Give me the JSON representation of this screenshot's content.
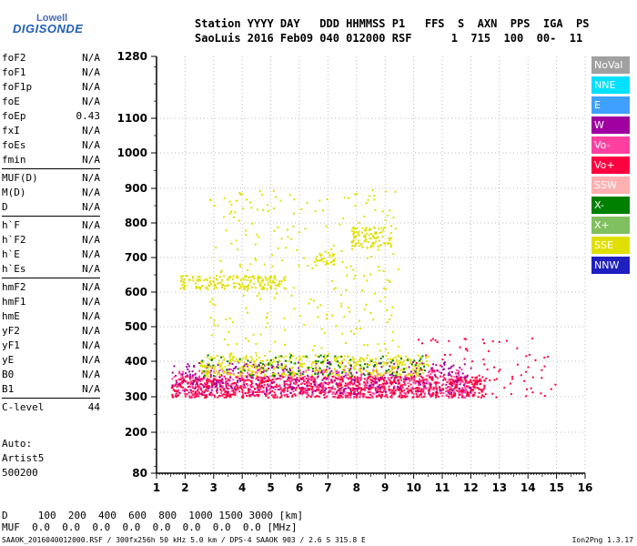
{
  "branding": {
    "line1": "Lowell",
    "line2": "DIGISONDE"
  },
  "header": {
    "labels": "Station YYYY DAY   DDD HHMMSS P1   FFS  S  AXN  PPS  IGA  PS",
    "values": "SaoLuis 2016 Feb09 040 012000 RSF      1  715  100  00-  11"
  },
  "params_groups": [
    [
      [
        "foF2",
        "N/A"
      ],
      [
        "foF1",
        "N/A"
      ],
      [
        "foF1p",
        "N/A"
      ],
      [
        "foE",
        "N/A"
      ],
      [
        "foEp",
        "0.43"
      ],
      [
        "fxI",
        "N/A"
      ],
      [
        "foEs",
        "N/A"
      ],
      [
        "fmin",
        "N/A"
      ]
    ],
    [
      [
        "MUF(D)",
        "N/A"
      ],
      [
        "M(D)",
        "N/A"
      ],
      [
        "D",
        "N/A"
      ]
    ],
    [
      [
        "h`F",
        "N/A"
      ],
      [
        "h`F2",
        "N/A"
      ],
      [
        "h`E",
        "N/A"
      ],
      [
        "h`Es",
        "N/A"
      ]
    ],
    [
      [
        "hmF2",
        "N/A"
      ],
      [
        "hmF1",
        "N/A"
      ],
      [
        "hmE",
        "N/A"
      ],
      [
        "yF2",
        "N/A"
      ],
      [
        "yF1",
        "N/A"
      ],
      [
        "yE",
        "N/A"
      ],
      [
        "B0",
        "N/A"
      ],
      [
        "B1",
        "N/A"
      ]
    ],
    [
      [
        "C-level",
        "44"
      ]
    ]
  ],
  "auto": {
    "line1": "Auto:",
    "line2": "Artist5",
    "line3": "500200"
  },
  "muf_table": {
    "d_label": "D",
    "d_values": "  100  200  400  600  800  1000 1500 3000 [km]",
    "muf_label": "MUF",
    "muf_values": " 0.0  0.0  0.0  0.0  0.0  0.0  0.0  0.0 [MHz]"
  },
  "footer": {
    "left": "SAAOK_2016040012000.RSF / 300fx256h 50 kHz 5.0 km / DPS-4 SAAOK 903 / 2.6 S 315.8 E",
    "right": "Ion2Png 1.3.17"
  },
  "legend": [
    {
      "label": "NoVal",
      "color": "#a0a0a0"
    },
    {
      "label": "NNE",
      "color": "#00e0ff"
    },
    {
      "label": "E",
      "color": "#40a0ff"
    },
    {
      "label": "W",
      "color": "#a000a0"
    },
    {
      "label": "Vo-",
      "color": "#ff40a0"
    },
    {
      "label": "Vo+",
      "color": "#ff0040"
    },
    {
      "label": "SSW",
      "color": "#ffb0b0"
    },
    {
      "label": "X-",
      "color": "#008000"
    },
    {
      "label": "X+",
      "color": "#80c060"
    },
    {
      "label": "SSE",
      "color": "#e0e000"
    },
    {
      "label": "NNW",
      "color": "#2020c0"
    }
  ],
  "chart_data": {
    "type": "scatter",
    "title": "",
    "xlabel": "",
    "ylabel": "",
    "xlim": [
      1,
      16
    ],
    "ylim": [
      80,
      1280
    ],
    "x_ticks": [
      1,
      2,
      3,
      4,
      5,
      6,
      7,
      8,
      9,
      10,
      11,
      12,
      13,
      14,
      15,
      16
    ],
    "y_ticks": [
      80,
      200,
      300,
      400,
      500,
      600,
      700,
      800,
      900,
      1000,
      1100,
      1280
    ],
    "y_scale": "nonlinear (ionogram height scale)",
    "grid": true,
    "echo_regions": [
      {
        "name": "lower trace (Vo+)",
        "x": [
          1.5,
          12.5
        ],
        "y": [
          300,
          360
        ],
        "color": "#ff0040",
        "density": 0.85
      },
      {
        "name": "lower trace (Vo-)",
        "x": [
          1.5,
          12.0
        ],
        "y": [
          300,
          380
        ],
        "color": "#ff40a0",
        "density": 0.25
      },
      {
        "name": "lower trace (W)",
        "x": [
          1.5,
          12.0
        ],
        "y": [
          310,
          400
        ],
        "color": "#a000a0",
        "density": 0.2
      },
      {
        "name": "SSE band",
        "x": [
          2.5,
          10.5
        ],
        "y": [
          360,
          420
        ],
        "color": "#e0e000",
        "density": 0.45
      },
      {
        "name": "X- band",
        "x": [
          2.5,
          10.5
        ],
        "y": [
          360,
          420
        ],
        "color": "#008000",
        "density": 0.12
      },
      {
        "name": "trace 620-650",
        "x": [
          1.8,
          5.5
        ],
        "y": [
          610,
          650
        ],
        "color": "#e0e000",
        "density": 0.6
      },
      {
        "name": "trace 690-720",
        "x": [
          6.5,
          7.2
        ],
        "y": [
          680,
          720
        ],
        "color": "#e0e000",
        "density": 0.6
      },
      {
        "name": "trace 740-790",
        "x": [
          7.8,
          9.2
        ],
        "y": [
          730,
          790
        ],
        "color": "#e0e000",
        "density": 0.6
      },
      {
        "name": "upper sparse",
        "x": [
          2.8,
          9.5
        ],
        "y": [
          420,
          900
        ],
        "color": "#e0e000",
        "density": 0.04
      },
      {
        "name": "right sparse",
        "x": [
          10.0,
          15.0
        ],
        "y": [
          300,
          470
        ],
        "color": "#ff0040",
        "density": 0.05
      }
    ]
  }
}
